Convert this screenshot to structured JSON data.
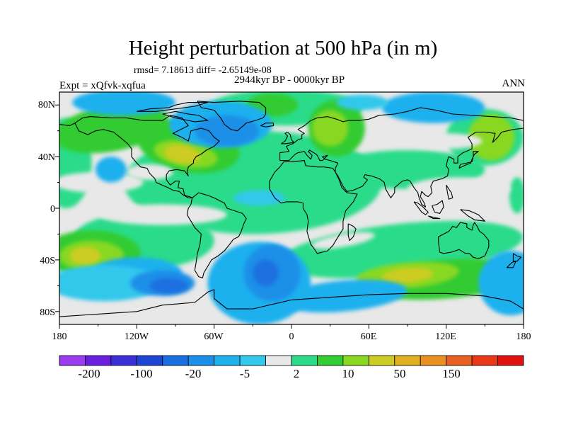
{
  "title": "Height perturbation at 500 hPa (in m)",
  "stats": "rmsd= 7.18613 diff= -2.65149e-08",
  "period": "2944kyr BP - 0000kyr BP",
  "experiment": "Expt = xQfvk-xqfua",
  "season": "ANN",
  "map": {
    "lon_range": [
      -180,
      180
    ],
    "lat_range": [
      -90,
      90
    ],
    "x_tick_labels": [
      "180",
      "120W",
      "60W",
      "0",
      "60E",
      "120E",
      "180"
    ],
    "y_tick_labels": [
      "80N",
      "40N",
      "0",
      "40S",
      "80S"
    ]
  },
  "colorbar": {
    "colors": [
      "#9b3bf0",
      "#6a1fe0",
      "#3d2fd8",
      "#1f45d6",
      "#1a6fe0",
      "#1a8fe8",
      "#1fb0ee",
      "#33c8ec",
      "#e8e8e8",
      "#2bdb8a",
      "#33cc33",
      "#88d822",
      "#cccc22",
      "#e0b020",
      "#e89020",
      "#e86020",
      "#e83818",
      "#e01010"
    ],
    "labels": [
      "-200",
      "-100",
      "-20",
      "-5",
      "2",
      "10",
      "50",
      "150"
    ]
  }
}
